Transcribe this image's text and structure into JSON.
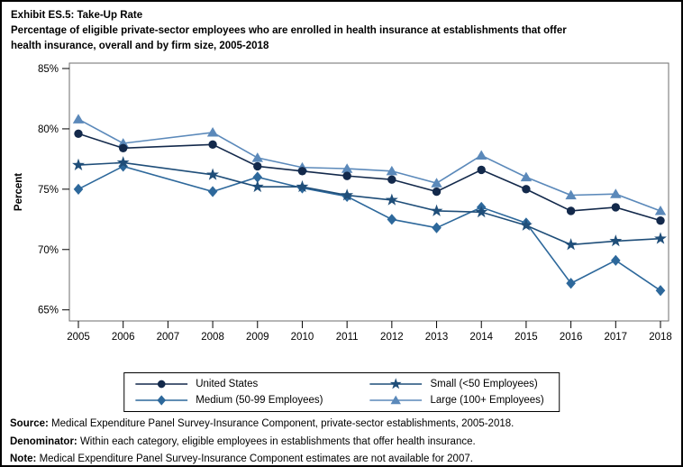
{
  "header": {
    "exhibit_title": "Exhibit ES.5: Take-Up Rate",
    "subtitle_lines": [
      "Percentage of eligible private-sector employees who are enrolled in health insurance at establishments that offer",
      "health insurance, overall and by firm size, 2005-2018"
    ]
  },
  "chart_data": {
    "type": "line",
    "title": "Take-Up Rate, overall and by firm size, 2005-2018",
    "xlabel": "",
    "ylabel": "Percent",
    "ylim": [
      64.1,
      85.5
    ],
    "grid": false,
    "legend_position": "bottom",
    "y_ticks": [
      {
        "value": 85,
        "label": "85%"
      },
      {
        "value": 80,
        "label": "80%"
      },
      {
        "value": 75,
        "label": "75%"
      },
      {
        "value": 70,
        "label": "70%"
      },
      {
        "value": 65,
        "label": "65%"
      }
    ],
    "x_ticks": [
      "2005",
      "2006",
      "2007",
      "2008",
      "2009",
      "2010",
      "2011",
      "2012",
      "2013",
      "2014",
      "2015",
      "2016",
      "2017",
      "2018"
    ],
    "years_with_data": [
      2005,
      2006,
      2008,
      2009,
      2010,
      2011,
      2012,
      2013,
      2014,
      2015,
      2016,
      2017,
      2018
    ],
    "missing_data_note": "No estimates for 2007",
    "series": [
      {
        "name": "United States",
        "marker": "circle",
        "color": "#13294b",
        "values": [
          79.6,
          78.4,
          78.7,
          76.9,
          76.5,
          76.1,
          75.8,
          74.8,
          76.6,
          75.0,
          73.2,
          73.5,
          72.4
        ]
      },
      {
        "name": "Small (<50 Employees)",
        "marker": "star",
        "color": "#1f4e79",
        "values": [
          77.0,
          77.2,
          76.2,
          75.2,
          75.2,
          74.5,
          74.1,
          73.2,
          73.1,
          72.0,
          70.4,
          70.7,
          70.9
        ]
      },
      {
        "name": "Medium (50-99 Employees)",
        "marker": "diamond",
        "color": "#2d689b",
        "values": [
          75.0,
          76.9,
          74.8,
          76.0,
          75.1,
          74.4,
          72.5,
          71.8,
          73.5,
          72.2,
          67.2,
          69.1,
          66.6
        ]
      },
      {
        "name": "Large (100+ Employees)",
        "marker": "triangle",
        "color": "#5b89ba",
        "values": [
          80.8,
          78.8,
          79.7,
          77.6,
          76.8,
          76.7,
          76.5,
          75.5,
          77.8,
          76.0,
          74.5,
          74.6,
          73.2
        ]
      }
    ]
  },
  "footnotes": [
    {
      "label": "Source:",
      "text": " Medical Expenditure Panel Survey-Insurance Component, private-sector establishments, 2005-2018."
    },
    {
      "label": "Denominator:",
      "text": " Within each category, eligible employees in establishments that offer health insurance."
    },
    {
      "label": "Note:",
      "text": " Medical Expenditure Panel Survey-Insurance Component estimates are not available for 2007."
    }
  ]
}
